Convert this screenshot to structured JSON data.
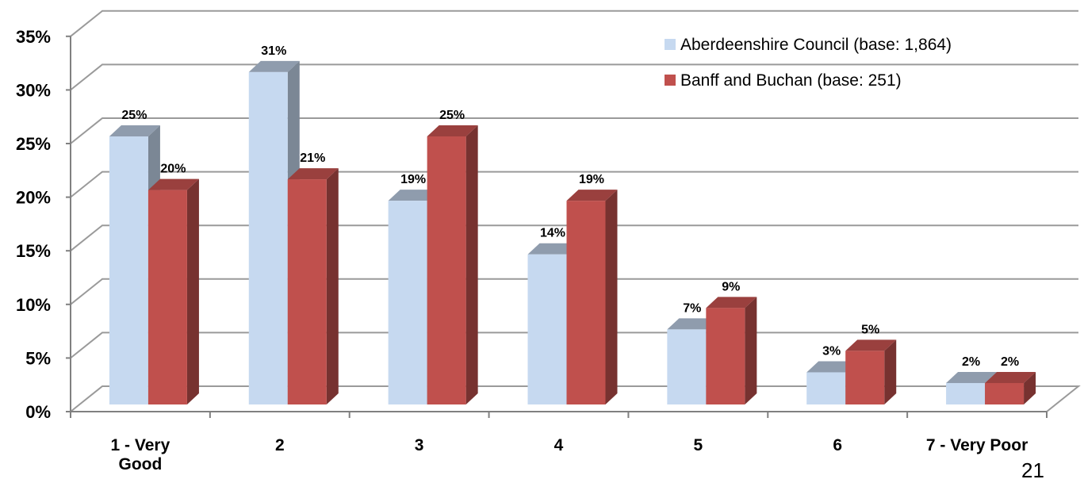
{
  "chart_data": {
    "type": "bar",
    "categories": [
      "1 - Very Good",
      "2",
      "3",
      "4",
      "5",
      "6",
      "7 - Very Poor"
    ],
    "series": [
      {
        "name": "Aberdeenshire Council (base: 1,864)",
        "values": [
          25,
          31,
          19,
          14,
          7,
          3,
          2
        ],
        "color": "#c6d9f0"
      },
      {
        "name": "Banff and Buchan (base: 251)",
        "values": [
          20,
          21,
          25,
          19,
          9,
          5,
          2
        ],
        "color": "#c0504d"
      }
    ],
    "data_labels": [
      [
        "25%",
        "31%",
        "19%",
        "14%",
        "7%",
        "3%",
        "2%"
      ],
      [
        "20%",
        "21%",
        "25%",
        "19%",
        "9%",
        "5%",
        "2%"
      ]
    ],
    "yticks": [
      "0%",
      "5%",
      "10%",
      "15%",
      "20%",
      "25%",
      "30%",
      "35%"
    ],
    "ylim": [
      0,
      35
    ],
    "grid": true,
    "legend_position": "top-right",
    "style": "3d-clustered-column"
  },
  "slide_number": "21"
}
